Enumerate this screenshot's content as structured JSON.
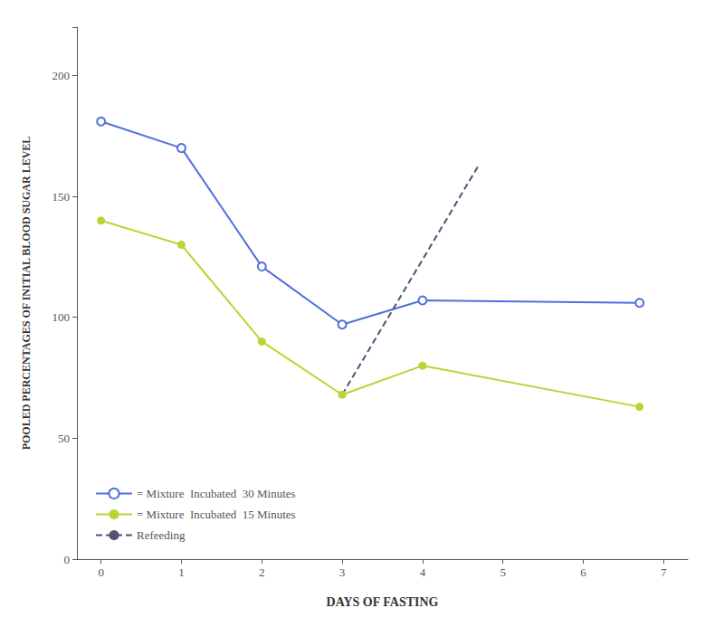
{
  "chart_data": {
    "type": "line",
    "xlabel": "DAYS OF FASTING",
    "ylabel": "POOLED PERCENTAGES OF INITIAL BLOOD SUGAR LEVEL",
    "xlim": [
      -0.3,
      7.3
    ],
    "ylim": [
      0,
      220
    ],
    "xticks": [
      0,
      1,
      2,
      3,
      4,
      5,
      6,
      7
    ],
    "yticks": [
      0,
      50,
      100,
      150,
      200
    ],
    "grid": false,
    "legend": "lower left",
    "series": [
      {
        "name": "= Mixture  Incubated  30 Minutes",
        "x": [
          0,
          1,
          2,
          3,
          4,
          6.7
        ],
        "values": [
          181,
          170,
          121,
          97,
          107,
          106
        ],
        "marker": "open_circle",
        "line_style": "solid"
      },
      {
        "name": "= Mixture  Incubated  15 Minutes",
        "x": [
          0,
          1,
          2,
          3,
          4,
          6.7
        ],
        "values": [
          140,
          130,
          90,
          68,
          80,
          63
        ],
        "marker": "circle",
        "line_style": "solid"
      },
      {
        "name": "Refeeding",
        "x": [
          3,
          4.7
        ],
        "values": [
          68,
          163
        ],
        "marker": "none",
        "line_style": "dashed"
      }
    ]
  }
}
